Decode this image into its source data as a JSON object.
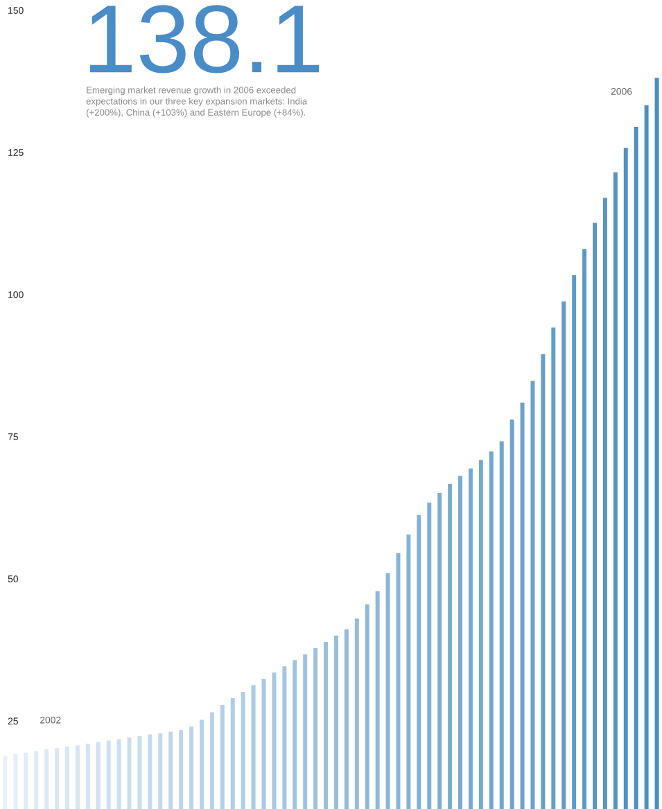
{
  "chart_data": {
    "type": "bar",
    "title": "138.1",
    "subtitle": "Emerging market revenue growth in 2006 exceeded expectations in our three key expansion markets: India (+200%), China (+103%) and Eastern Europe (+84%).",
    "categories": [
      null,
      null,
      null,
      null,
      null,
      null,
      null,
      null,
      null,
      null,
      null,
      null,
      null,
      null,
      null,
      null,
      null,
      null,
      null,
      null,
      null,
      null,
      null,
      null,
      null,
      null,
      null,
      null,
      null,
      null,
      null,
      null,
      null,
      null,
      null,
      null,
      null,
      null,
      null,
      null,
      null,
      null,
      null,
      null,
      null,
      null,
      null,
      null,
      null,
      null,
      null,
      null,
      null,
      null,
      null,
      null,
      null,
      null,
      null,
      null,
      null,
      null,
      null,
      null
    ],
    "values": [
      18.9,
      19.2,
      19.4,
      19.7,
      20.0,
      20.2,
      20.5,
      20.7,
      21.0,
      21.3,
      21.5,
      21.8,
      22.1,
      22.3,
      22.6,
      22.8,
      23.1,
      23.4,
      24.0,
      25.2,
      26.5,
      27.8,
      29.0,
      30.1,
      31.3,
      32.4,
      33.5,
      34.6,
      35.7,
      36.7,
      37.8,
      38.9,
      40.0,
      41.1,
      43.0,
      45.5,
      47.8,
      51.0,
      54.5,
      57.8,
      61.2,
      63.4,
      65.1,
      66.7,
      68.1,
      69.4,
      70.9,
      72.4,
      74.2,
      78.0,
      81.0,
      84.8,
      89.5,
      94.2,
      98.8,
      103.4,
      108.0,
      112.6,
      117.0,
      121.5,
      125.8,
      129.5,
      133.3,
      138.1
    ],
    "colors": [
      "#e8f0f8",
      "#e6eef7",
      "#e3edf6",
      "#e0ebf5",
      "#dee9f4",
      "#dbe8f3",
      "#d9e7f3",
      "#d6e5f2",
      "#d4e3f1",
      "#d1e2f0",
      "#cfe0ef",
      "#ccdfee",
      "#cadded",
      "#c7dcec",
      "#c5daeb",
      "#c2d8ea",
      "#c0d7e9",
      "#bdd5e9",
      "#bbd4e8",
      "#b8d2e7",
      "#b6d1e6",
      "#b3cfe5",
      "#b1cde4",
      "#aecce3",
      "#accae2",
      "#a9c9e1",
      "#a7c7e0",
      "#a4c6e0",
      "#a2c4df",
      "#9fc2de",
      "#9dc1dd",
      "#9abfdc",
      "#98bedb",
      "#95bcda",
      "#93bbd9",
      "#90b9d8",
      "#8eb7d7",
      "#8bb6d7",
      "#89b4d6",
      "#86b3d5",
      "#84b1d4",
      "#81b0d3",
      "#7faed2",
      "#7cacd1",
      "#7aabd0",
      "#77a9cf",
      "#75a8ce",
      "#72a6ce",
      "#70a5cd",
      "#6da3cc",
      "#6ba1cb",
      "#68a0ca",
      "#669ec9",
      "#639dc8",
      "#619bc7",
      "#5e9ac6",
      "#5c98c5",
      "#5996c4",
      "#5795c4",
      "#5493c3",
      "#5292c2",
      "#4f90c1",
      "#4d8fc0",
      "#4a8dbf"
    ],
    "ylim": [
      9.5,
      151.8
    ],
    "yticks": [
      25,
      50,
      75,
      100,
      125,
      150
    ],
    "grid": false,
    "legend": false,
    "annotations": [
      "2002",
      "2006"
    ]
  }
}
